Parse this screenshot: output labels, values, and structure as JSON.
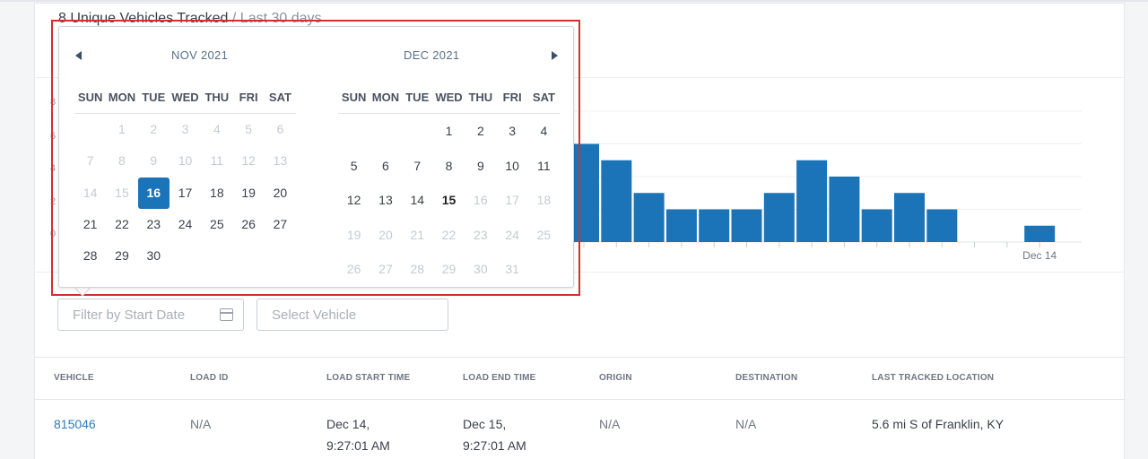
{
  "summary": {
    "count_text": "8 Unique Vehicles Tracked",
    "period_text": " / Last 30 days"
  },
  "chart_data": {
    "type": "bar",
    "y_ticks": [
      "8",
      "6",
      "4",
      "2",
      "0"
    ],
    "visible_x_label": "Dec 14",
    "values": [
      6,
      5,
      3,
      2,
      2,
      2,
      3,
      5,
      4,
      2,
      3,
      2,
      0,
      0,
      1
    ]
  },
  "picker": {
    "left_month": "NOV 2021",
    "right_month": "DEC 2021",
    "weekdays": [
      "SUN",
      "MON",
      "TUE",
      "WED",
      "THU",
      "FRI",
      "SAT"
    ],
    "nov_weeks": [
      [
        {
          "d": ""
        },
        {
          "d": "1",
          "s": "disabled"
        },
        {
          "d": "2",
          "s": "disabled"
        },
        {
          "d": "3",
          "s": "disabled"
        },
        {
          "d": "4",
          "s": "disabled"
        },
        {
          "d": "5",
          "s": "disabled"
        },
        {
          "d": "6",
          "s": "disabled"
        }
      ],
      [
        {
          "d": "7",
          "s": "disabled"
        },
        {
          "d": "8",
          "s": "disabled"
        },
        {
          "d": "9",
          "s": "disabled"
        },
        {
          "d": "10",
          "s": "disabled"
        },
        {
          "d": "11",
          "s": "disabled"
        },
        {
          "d": "12",
          "s": "disabled"
        },
        {
          "d": "13",
          "s": "disabled"
        }
      ],
      [
        {
          "d": "14",
          "s": "disabled"
        },
        {
          "d": "15",
          "s": "disabled"
        },
        {
          "d": "16",
          "s": "selected"
        },
        {
          "d": "17"
        },
        {
          "d": "18"
        },
        {
          "d": "19"
        },
        {
          "d": "20"
        }
      ],
      [
        {
          "d": "21"
        },
        {
          "d": "22"
        },
        {
          "d": "23"
        },
        {
          "d": "24"
        },
        {
          "d": "25"
        },
        {
          "d": "26"
        },
        {
          "d": "27"
        }
      ],
      [
        {
          "d": "28"
        },
        {
          "d": "29"
        },
        {
          "d": "30"
        },
        {
          "d": ""
        },
        {
          "d": ""
        },
        {
          "d": ""
        },
        {
          "d": ""
        }
      ]
    ],
    "dec_weeks": [
      [
        {
          "d": ""
        },
        {
          "d": ""
        },
        {
          "d": ""
        },
        {
          "d": "1"
        },
        {
          "d": "2"
        },
        {
          "d": "3"
        },
        {
          "d": "4"
        }
      ],
      [
        {
          "d": "5"
        },
        {
          "d": "6"
        },
        {
          "d": "7"
        },
        {
          "d": "8"
        },
        {
          "d": "9"
        },
        {
          "d": "10"
        },
        {
          "d": "11"
        }
      ],
      [
        {
          "d": "12"
        },
        {
          "d": "13"
        },
        {
          "d": "14"
        },
        {
          "d": "15",
          "s": "today"
        },
        {
          "d": "16",
          "s": "disabled"
        },
        {
          "d": "17",
          "s": "disabled"
        },
        {
          "d": "18",
          "s": "disabled"
        }
      ],
      [
        {
          "d": "19",
          "s": "disabled"
        },
        {
          "d": "20",
          "s": "disabled"
        },
        {
          "d": "21",
          "s": "disabled"
        },
        {
          "d": "22",
          "s": "disabled"
        },
        {
          "d": "23",
          "s": "disabled"
        },
        {
          "d": "24",
          "s": "disabled"
        },
        {
          "d": "25",
          "s": "disabled"
        }
      ],
      [
        {
          "d": "26",
          "s": "disabled"
        },
        {
          "d": "27",
          "s": "disabled"
        },
        {
          "d": "28",
          "s": "disabled"
        },
        {
          "d": "29",
          "s": "disabled"
        },
        {
          "d": "30",
          "s": "disabled"
        },
        {
          "d": "31",
          "s": "disabled"
        },
        {
          "d": ""
        }
      ]
    ]
  },
  "filters": {
    "start_date_placeholder": "Filter by Start Date",
    "vehicle_placeholder": "Select Vehicle"
  },
  "table": {
    "headers": [
      "VEHICLE",
      "LOAD ID",
      "LOAD START TIME",
      "LOAD END TIME",
      "ORIGIN",
      "DESTINATION",
      "LAST TRACKED LOCATION"
    ],
    "row": {
      "vehicle": "815046",
      "load_id": "N/A",
      "start_date": "Dec 14,",
      "start_time": "9:27:01 AM",
      "end_date": "Dec 15,",
      "end_time": "9:27:01 AM",
      "origin": "N/A",
      "destination": "N/A",
      "last_location": "5.6 mi S of Franklin, KY"
    }
  },
  "colors": {
    "bar": "#1b74b8",
    "selected_day": "#1b74b8",
    "link": "#2b7bbf",
    "highlight_border": "#d32f2f"
  }
}
